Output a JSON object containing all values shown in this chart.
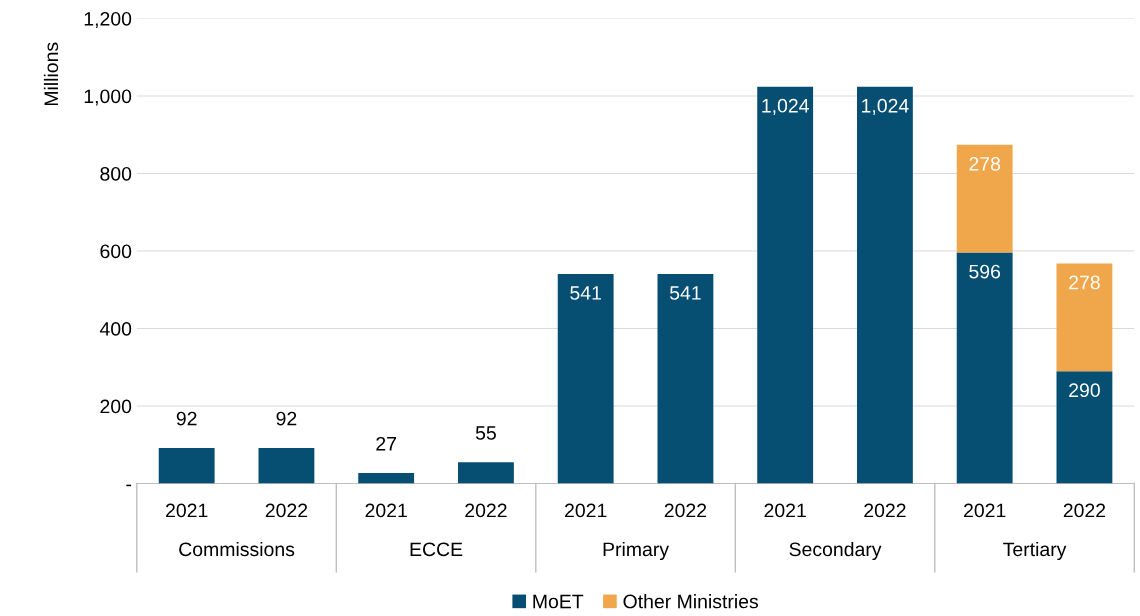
{
  "chart_data": {
    "type": "bar",
    "stacked": true,
    "ylabel": "Millions",
    "categories": [
      "2021",
      "2022",
      "2021",
      "2022",
      "2021",
      "2022",
      "2021",
      "2022",
      "2021",
      "2022"
    ],
    "annotations": [
      "Commissions",
      "ECCE",
      "Primary",
      "Secondary",
      "Tertiary"
    ],
    "series": [
      {
        "name": "MoET",
        "color": "#064f73",
        "values": [
          92,
          92,
          27,
          55,
          541,
          541,
          1024,
          1024,
          596,
          290
        ],
        "value_labels": [
          "92",
          "92",
          "27",
          "55",
          "541",
          "541",
          "1,024",
          "1,024",
          "596",
          "290"
        ]
      },
      {
        "name": "Other Ministries",
        "color": "#f0a64b",
        "values": [
          null,
          null,
          null,
          null,
          null,
          null,
          null,
          null,
          278,
          278
        ],
        "value_labels": [
          null,
          null,
          null,
          null,
          null,
          null,
          null,
          null,
          "278",
          "278"
        ]
      }
    ],
    "ylim": [
      0,
      1200
    ],
    "yticks": [
      {
        "value": 0,
        "label": "-"
      },
      200,
      400,
      600,
      800,
      {
        "value": 1000,
        "label": "1,000"
      },
      {
        "value": 1200,
        "label": "1,200"
      }
    ],
    "grid": "y",
    "legend": "bottom"
  }
}
